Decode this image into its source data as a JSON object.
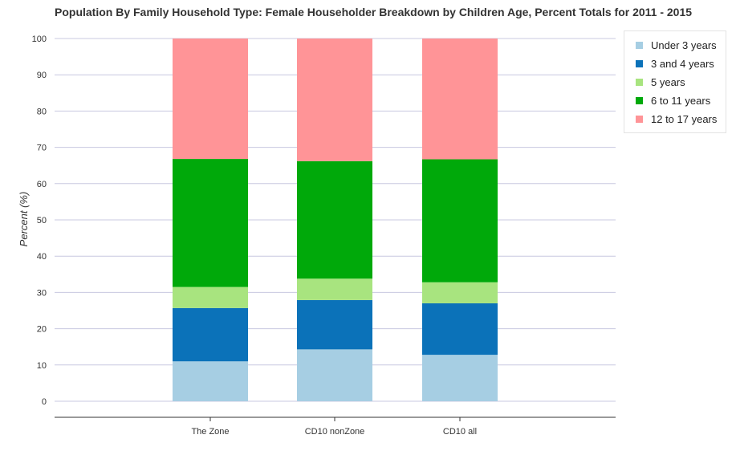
{
  "chart_data": {
    "type": "bar",
    "stacked": true,
    "title": "Population By Family Household Type: Female Householder Breakdown by Children Age, Percent Totals for 2011 - 2015",
    "xlabel": "",
    "ylabel": "Percent (%)",
    "ylim": [
      0,
      100
    ],
    "yticks": [
      0,
      10,
      20,
      30,
      40,
      50,
      60,
      70,
      80,
      90,
      100
    ],
    "categories": [
      "The Zone",
      "CD10 nonZone",
      "CD10 all"
    ],
    "series": [
      {
        "name": "Under 3 years",
        "color": "#a6cee3",
        "values": [
          11.0,
          14.3,
          12.8
        ]
      },
      {
        "name": "3 and 4 years",
        "color": "#0b72b9",
        "values": [
          14.7,
          13.6,
          14.2
        ]
      },
      {
        "name": "5 years",
        "color": "#a8e47f",
        "values": [
          5.8,
          5.9,
          5.8
        ]
      },
      {
        "name": "6 to 11 years",
        "color": "#00a90a",
        "values": [
          35.3,
          32.4,
          33.9
        ]
      },
      {
        "name": "12 to 17 years",
        "color": "#ff9497",
        "values": [
          33.2,
          33.8,
          33.3
        ]
      }
    ],
    "grid": true,
    "legend_position": "top-right"
  }
}
